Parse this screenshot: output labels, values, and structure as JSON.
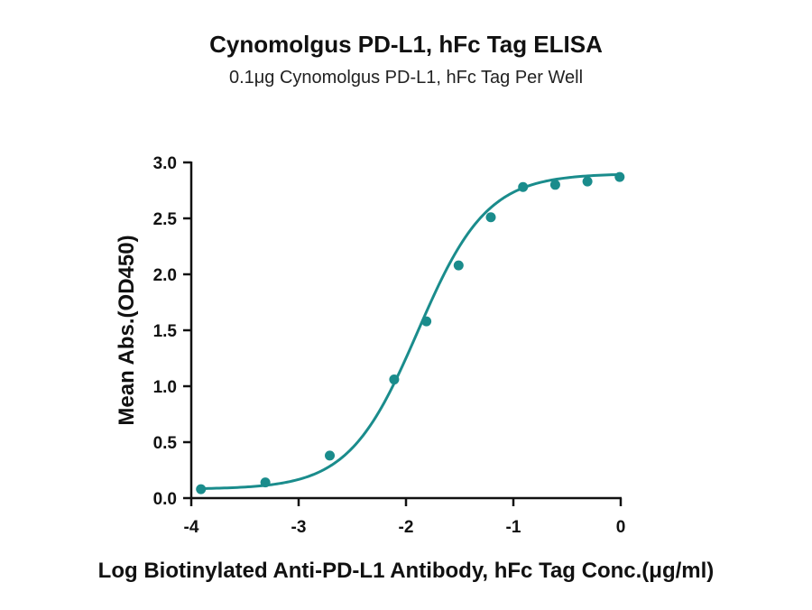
{
  "chart_data": {
    "type": "scatter",
    "title": "Cynomolgus PD-L1, hFc Tag ELISA",
    "subtitle": "0.1μg Cynomolgus PD-L1, hFc Tag Per Well",
    "xlabel": "Log Biotinylated Anti-PD-L1 Antibody, hFc Tag Conc.(μg/ml)",
    "ylabel": "Mean Abs.(OD450)",
    "xlim": [
      -4,
      0
    ],
    "ylim": [
      0,
      3.0
    ],
    "x_ticks": [
      -4,
      -3,
      -2,
      -1,
      0
    ],
    "x_tick_labels": [
      "-4",
      "-3",
      "-2",
      "-1",
      "0"
    ],
    "y_ticks": [
      0,
      0.5,
      1.0,
      1.5,
      2.0,
      2.5,
      3.0
    ],
    "y_tick_labels": [
      "0.0",
      "0.5",
      "1.0",
      "1.5",
      "2.0",
      "2.5",
      "3.0"
    ],
    "grid": false,
    "color": "#1a8c8c",
    "series": [
      {
        "points": [
          {
            "x": -3.91,
            "y": 0.08
          },
          {
            "x": -3.31,
            "y": 0.14
          },
          {
            "x": -2.71,
            "y": 0.38
          },
          {
            "x": -2.11,
            "y": 1.06
          },
          {
            "x": -1.81,
            "y": 1.58
          },
          {
            "x": -1.51,
            "y": 2.08
          },
          {
            "x": -1.21,
            "y": 2.51
          },
          {
            "x": -0.91,
            "y": 2.78
          },
          {
            "x": -0.61,
            "y": 2.8
          },
          {
            "x": -0.31,
            "y": 2.83
          },
          {
            "x": -0.01,
            "y": 2.87
          }
        ],
        "fit": {
          "bottom": 0.08,
          "top": 2.9,
          "logEC50": -1.89,
          "hill": 1.35
        }
      }
    ]
  }
}
